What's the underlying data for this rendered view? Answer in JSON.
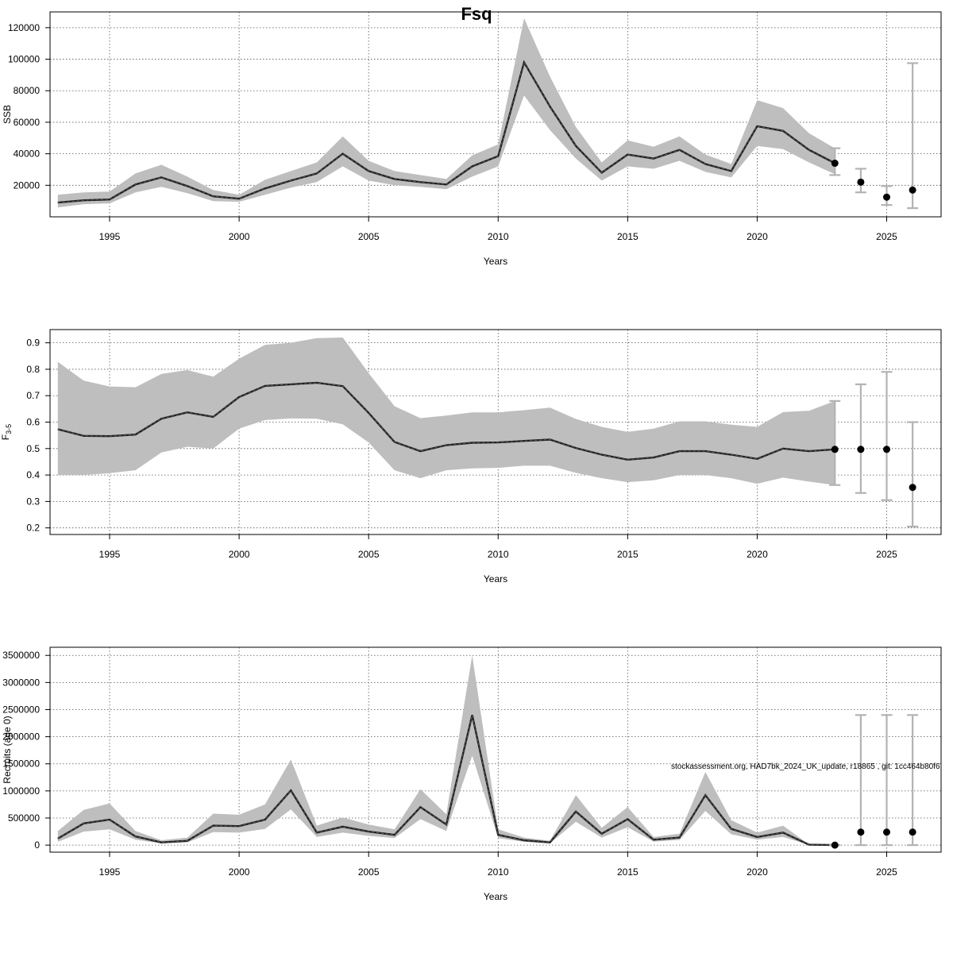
{
  "figure": {
    "title": "Fsq",
    "footnote": "stockassessment.org, HAD7bk_2024_UK_update, r18865 , git: 1cc464b80f6"
  },
  "colors": {
    "band": "#bebebe",
    "line": "#222222",
    "forecast_bar": "#b3b3b3",
    "forecast_point": "#000000"
  },
  "chart_data": [
    {
      "type": "line",
      "ylabel": "SSB",
      "xlabel": "Years",
      "xlim": [
        1992.7,
        2027.1
      ],
      "ylim": [
        0,
        130000
      ],
      "x_ticks": [
        1995,
        2000,
        2005,
        2010,
        2015,
        2020,
        2025
      ],
      "y_ticks": [
        20000,
        40000,
        60000,
        80000,
        100000,
        120000
      ],
      "grid": true,
      "x": [
        1993,
        1994,
        1995,
        1996,
        1997,
        1998,
        1999,
        2000,
        2001,
        2002,
        2003,
        2004,
        2005,
        2006,
        2007,
        2008,
        2009,
        2010,
        2011,
        2012,
        2013,
        2014,
        2015,
        2016,
        2017,
        2018,
        2019,
        2020,
        2021,
        2022,
        2023
      ],
      "estimate": [
        9000,
        10500,
        11000,
        20500,
        25000,
        19500,
        13000,
        11500,
        18000,
        23000,
        27500,
        40000,
        29000,
        24000,
        22000,
        20500,
        32000,
        38500,
        98000,
        70000,
        45000,
        28000,
        39500,
        37000,
        42500,
        33500,
        29000,
        57500,
        54500,
        42500,
        34000
      ],
      "lower": [
        6000,
        8000,
        8500,
        15500,
        19000,
        15000,
        10000,
        9500,
        14000,
        18500,
        22000,
        32000,
        23000,
        20000,
        19000,
        17500,
        25500,
        32000,
        77000,
        55000,
        37000,
        23000,
        32000,
        30500,
        35500,
        28500,
        25000,
        45000,
        43000,
        34500,
        27000
      ],
      "upper": [
        14000,
        15500,
        16000,
        27500,
        33000,
        25500,
        17000,
        14000,
        23500,
        29000,
        34500,
        51000,
        35500,
        29000,
        26500,
        24000,
        39000,
        46000,
        126000,
        89000,
        57000,
        34500,
        48500,
        44500,
        51000,
        39500,
        33500,
        74000,
        69000,
        53000,
        43500
      ],
      "forecast": {
        "x": [
          2023,
          2024,
          2025,
          2026
        ],
        "median": [
          34000,
          22000,
          12500,
          17000
        ],
        "lower": [
          26500,
          15500,
          7500,
          5500
        ],
        "upper": [
          43500,
          30500,
          19500,
          97500
        ]
      }
    },
    {
      "type": "line",
      "ylabel_main": "F",
      "ylabel_sub": "3-5",
      "xlabel": "Years",
      "xlim": [
        1992.7,
        2027.1
      ],
      "ylim": [
        0.175,
        0.95
      ],
      "x_ticks": [
        1995,
        2000,
        2005,
        2010,
        2015,
        2020,
        2025
      ],
      "y_ticks": [
        0.2,
        0.3,
        0.4,
        0.5,
        0.6,
        0.7,
        0.8,
        0.9
      ],
      "grid": true,
      "x": [
        1993,
        1994,
        1995,
        1996,
        1997,
        1998,
        1999,
        2000,
        2001,
        2002,
        2003,
        2004,
        2005,
        2006,
        2007,
        2008,
        2009,
        2010,
        2011,
        2012,
        2013,
        2014,
        2015,
        2016,
        2017,
        2018,
        2019,
        2020,
        2021,
        2022,
        2023
      ],
      "estimate": [
        0.573,
        0.548,
        0.547,
        0.553,
        0.613,
        0.637,
        0.62,
        0.695,
        0.737,
        0.743,
        0.749,
        0.736,
        0.635,
        0.525,
        0.49,
        0.513,
        0.522,
        0.523,
        0.529,
        0.534,
        0.502,
        0.477,
        0.458,
        0.466,
        0.49,
        0.49,
        0.477,
        0.461,
        0.5,
        0.49,
        0.497
      ],
      "lower": [
        0.4,
        0.4,
        0.407,
        0.418,
        0.485,
        0.507,
        0.5,
        0.575,
        0.608,
        0.614,
        0.613,
        0.592,
        0.523,
        0.418,
        0.388,
        0.418,
        0.425,
        0.427,
        0.435,
        0.435,
        0.408,
        0.388,
        0.373,
        0.38,
        0.4,
        0.4,
        0.388,
        0.367,
        0.39,
        0.375,
        0.362
      ],
      "upper": [
        0.828,
        0.757,
        0.735,
        0.732,
        0.782,
        0.797,
        0.772,
        0.84,
        0.892,
        0.9,
        0.918,
        0.92,
        0.785,
        0.66,
        0.615,
        0.625,
        0.637,
        0.637,
        0.645,
        0.655,
        0.612,
        0.582,
        0.563,
        0.575,
        0.603,
        0.603,
        0.59,
        0.582,
        0.638,
        0.643,
        0.68
      ],
      "forecast": {
        "x": [
          2023,
          2024,
          2025,
          2026
        ],
        "median": [
          0.497,
          0.497,
          0.497,
          0.353
        ],
        "lower": [
          0.362,
          0.332,
          0.305,
          0.205
        ],
        "upper": [
          0.68,
          0.743,
          0.79,
          0.6
        ]
      }
    },
    {
      "type": "line",
      "ylabel": "Recruits (age 0)",
      "xlabel": "Years",
      "xlim": [
        1992.7,
        2027.1
      ],
      "ylim": [
        -130000,
        3650000
      ],
      "x_ticks": [
        1995,
        2000,
        2005,
        2010,
        2015,
        2020,
        2025
      ],
      "y_ticks": [
        0,
        500000,
        1000000,
        1500000,
        2000000,
        2500000,
        3000000,
        3500000
      ],
      "grid": true,
      "x": [
        1993,
        1994,
        1995,
        1996,
        1997,
        1998,
        1999,
        2000,
        2001,
        2002,
        2003,
        2004,
        2005,
        2006,
        2007,
        2008,
        2009,
        2010,
        2011,
        2012,
        2013,
        2014,
        2015,
        2016,
        2017,
        2018,
        2019,
        2020,
        2021,
        2022,
        2023
      ],
      "estimate": [
        120000,
        400000,
        470000,
        160000,
        50000,
        80000,
        360000,
        350000,
        470000,
        1010000,
        230000,
        340000,
        250000,
        190000,
        700000,
        380000,
        2400000,
        190000,
        90000,
        50000,
        620000,
        210000,
        480000,
        100000,
        140000,
        920000,
        300000,
        150000,
        230000,
        8000,
        0
      ],
      "lower": [
        60000,
        250000,
        290000,
        100000,
        30000,
        50000,
        240000,
        230000,
        300000,
        660000,
        150000,
        230000,
        170000,
        130000,
        480000,
        260000,
        1650000,
        130000,
        60000,
        35000,
        430000,
        140000,
        330000,
        65000,
        95000,
        630000,
        200000,
        100000,
        150000,
        5000,
        0
      ],
      "upper": [
        260000,
        650000,
        770000,
        260000,
        90000,
        140000,
        580000,
        560000,
        750000,
        1580000,
        360000,
        510000,
        380000,
        290000,
        1030000,
        570000,
        3500000,
        290000,
        140000,
        80000,
        920000,
        320000,
        700000,
        150000,
        210000,
        1350000,
        460000,
        230000,
        360000,
        12000,
        0
      ],
      "forecast": {
        "x": [
          2023,
          2024,
          2025,
          2026
        ],
        "median": [
          0,
          240000,
          240000,
          240000
        ],
        "lower": [
          0,
          0,
          0,
          0
        ],
        "upper": [
          0,
          2400000,
          2400000,
          2400000
        ]
      }
    }
  ]
}
